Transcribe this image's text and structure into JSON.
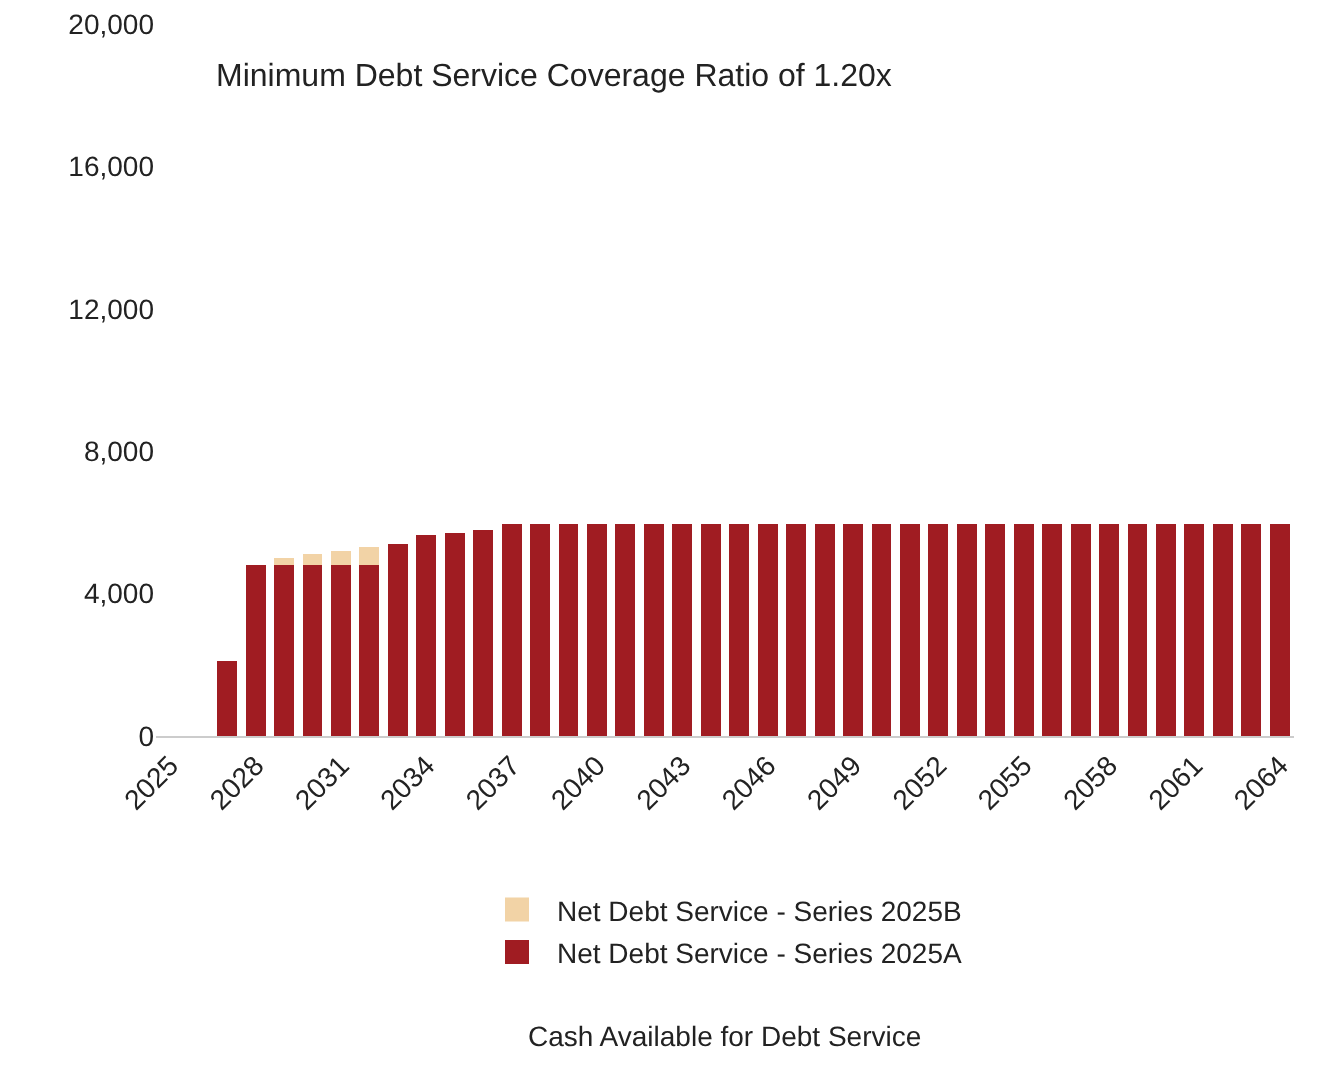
{
  "chart_data": {
    "type": "bar",
    "stacked": true,
    "categories": [
      "2025",
      null,
      null,
      "2028",
      null,
      null,
      "2031",
      null,
      null,
      "2034",
      null,
      null,
      "2037",
      null,
      null,
      "2040",
      null,
      null,
      "2043",
      null,
      null,
      "2046",
      null,
      null,
      "2049",
      null,
      null,
      "2052",
      null,
      null,
      "2055",
      null,
      null,
      "2058",
      null,
      null,
      "2061",
      null,
      null,
      "2064"
    ],
    "series": [
      {
        "name": "Net Debt Service - Series 2025A",
        "color": "#a01c22",
        "values": [
          0,
          0,
          2100,
          4800,
          4800,
          4800,
          4800,
          4800,
          5400,
          5650,
          5700,
          5800,
          5950,
          5950,
          5950,
          5950,
          5950,
          5950,
          5950,
          5950,
          5950,
          5950,
          5950,
          5950,
          5950,
          5950,
          5950,
          5950,
          5950,
          5950,
          5950,
          5950,
          5950,
          5950,
          5950,
          5950,
          5950,
          5950,
          5950,
          5950
        ]
      },
      {
        "name": "Net Debt Service - Series 2025B",
        "color": "#f2d3a6",
        "values": [
          0,
          0,
          0,
          0,
          200,
          300,
          400,
          500,
          0,
          0,
          0,
          0,
          0,
          0,
          0,
          0,
          0,
          0,
          0,
          0,
          0,
          0,
          0,
          0,
          0,
          0,
          0,
          0,
          0,
          0,
          0,
          0,
          0,
          0,
          0,
          0,
          0,
          0,
          0,
          0
        ]
      }
    ],
    "ylim": [
      0,
      20000
    ],
    "yticks": [
      {
        "value": 0,
        "label": "0"
      },
      {
        "value": 4000,
        "label": "4,000"
      },
      {
        "value": 8000,
        "label": "8,000"
      },
      {
        "value": 12000,
        "label": "12,000"
      },
      {
        "value": 16000,
        "label": "16,000"
      },
      {
        "value": 20000,
        "label": "20,000"
      }
    ],
    "grid": false,
    "legend": "bottom",
    "annotations": [
      "Minimum Debt Service Coverage Ratio of 1.20x",
      "Cash Available for Debt Service"
    ]
  }
}
